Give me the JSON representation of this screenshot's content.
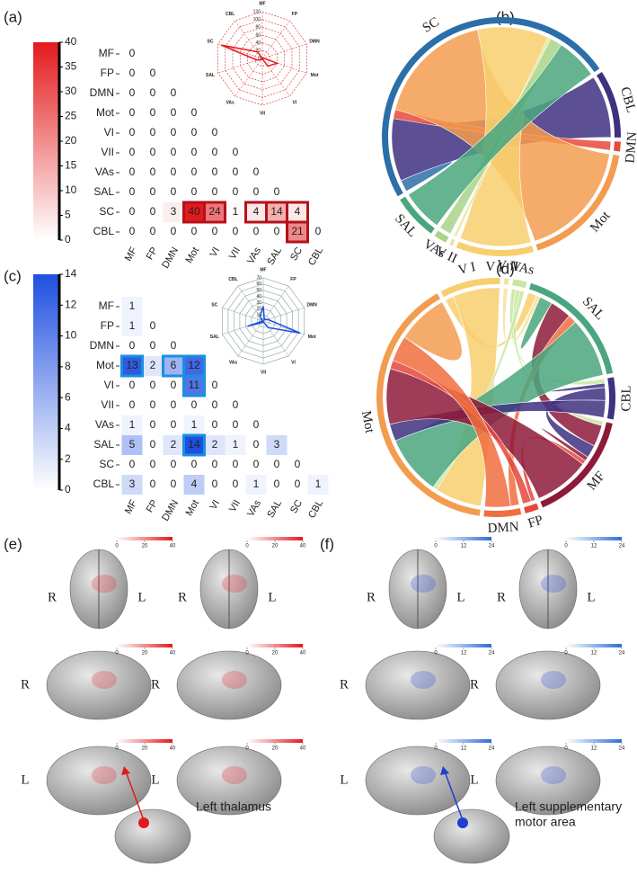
{
  "panel_a": {
    "label": "(a)",
    "networks": [
      "MF",
      "FP",
      "DMN",
      "Mot",
      "VI",
      "VII",
      "VAs",
      "SAL",
      "SC",
      "CBL"
    ],
    "matrix": [
      [
        0
      ],
      [
        0,
        0
      ],
      [
        0,
        0,
        0
      ],
      [
        0,
        0,
        0,
        0
      ],
      [
        0,
        0,
        0,
        0,
        0
      ],
      [
        0,
        0,
        0,
        0,
        0,
        0
      ],
      [
        0,
        0,
        0,
        0,
        0,
        0,
        0
      ],
      [
        0,
        0,
        0,
        0,
        0,
        0,
        0,
        0
      ],
      [
        0,
        0,
        3,
        40,
        24,
        1,
        4,
        14,
        4
      ],
      [
        0,
        0,
        0,
        0,
        0,
        0,
        0,
        0,
        21,
        0
      ]
    ],
    "highlight": [
      [
        8,
        3
      ],
      [
        8,
        4
      ],
      [
        8,
        6
      ],
      [
        8,
        7
      ],
      [
        8,
        8
      ],
      [
        9,
        8
      ]
    ],
    "color": "#e31a1c",
    "colorbar": {
      "range": [
        0,
        40
      ],
      "ticks": [
        0,
        5,
        10,
        15,
        20,
        25,
        30,
        35,
        40
      ]
    },
    "radar": {
      "range": [
        0,
        120
      ],
      "ticks": [
        0,
        20,
        40,
        60,
        80,
        100,
        120
      ],
      "values": [
        0,
        0,
        3,
        40,
        24,
        1,
        4,
        14,
        111,
        21
      ],
      "color": "#e31a1c"
    }
  },
  "panel_b": {
    "label": "(b)",
    "nodes": [
      {
        "name": "SC",
        "color": "#2b6ea8"
      },
      {
        "name": "CBL",
        "color": "#3f3080"
      },
      {
        "name": "DMN",
        "color": "#e8493a"
      },
      {
        "name": "Mot",
        "color": "#f39c4f"
      },
      {
        "name": "V I",
        "color": "#f7cf6e"
      },
      {
        "name": "V II",
        "color": "#e2e69a"
      },
      {
        "name": "VAs",
        "color": "#a8d48a"
      },
      {
        "name": "SAL",
        "color": "#4aa67e"
      }
    ]
  },
  "panel_c": {
    "label": "(c)",
    "networks": [
      "MF",
      "FP",
      "DMN",
      "Mot",
      "VI",
      "VII",
      "VAs",
      "SAL",
      "SC",
      "CBL"
    ],
    "matrix": [
      [
        1
      ],
      [
        1,
        0
      ],
      [
        0,
        0,
        0
      ],
      [
        13,
        2,
        6,
        12
      ],
      [
        0,
        0,
        0,
        11,
        0
      ],
      [
        0,
        0,
        0,
        0,
        0,
        0
      ],
      [
        1,
        0,
        0,
        1,
        0,
        0,
        0
      ],
      [
        5,
        0,
        2,
        14,
        2,
        1,
        0,
        3
      ],
      [
        0,
        0,
        0,
        0,
        0,
        0,
        0,
        0,
        0
      ],
      [
        3,
        0,
        0,
        4,
        0,
        0,
        1,
        0,
        0,
        1
      ]
    ],
    "highlight": [
      [
        3,
        0
      ],
      [
        3,
        2
      ],
      [
        3,
        3
      ],
      [
        4,
        3
      ],
      [
        7,
        3
      ]
    ],
    "color": "#1f4fe0",
    "colorbar": {
      "range": [
        0,
        14
      ],
      "ticks": [
        0,
        2,
        4,
        6,
        8,
        10,
        12,
        14
      ]
    },
    "radar": {
      "range": [
        0,
        70
      ],
      "ticks": [
        0,
        10,
        20,
        30,
        40,
        50,
        60,
        70
      ],
      "values": [
        24,
        3,
        8,
        63,
        13,
        1,
        3,
        27,
        0,
        9
      ],
      "color": "#1f4fe0"
    }
  },
  "panel_d": {
    "label": "(d)",
    "nodes": [
      {
        "name": "V I",
        "color": "#f7cf6e"
      },
      {
        "name": "V II",
        "color": "#f3e3a0"
      },
      {
        "name": "VAs",
        "color": "#c8e6a0"
      },
      {
        "name": "SAL",
        "color": "#4aa67e"
      },
      {
        "name": "CBL",
        "color": "#3f3080"
      },
      {
        "name": "MF",
        "color": "#8e1a3a"
      },
      {
        "name": "FP",
        "color": "#e5473a"
      },
      {
        "name": "DMN",
        "color": "#f06d3e"
      },
      {
        "name": "Mot",
        "color": "#f39c4f"
      }
    ]
  },
  "panel_e": {
    "label": "(e)",
    "colorbar": {
      "range": [
        0,
        40
      ],
      "ticks": [
        0,
        20,
        40
      ],
      "color": "#e31a1c"
    },
    "views": [
      [
        "R",
        "L"
      ],
      [
        "R",
        "L"
      ],
      [
        "R"
      ],
      [
        "R"
      ],
      [
        "L"
      ],
      [
        "L"
      ]
    ],
    "annotation": [
      "Left thalamus"
    ]
  },
  "panel_f": {
    "label": "(f)",
    "colorbar": {
      "range": [
        0,
        24
      ],
      "ticks": [
        0,
        12,
        24
      ],
      "color": "#2b6fd6"
    },
    "views": [
      [
        "R",
        "L"
      ],
      [
        "R",
        "L"
      ],
      [
        "R"
      ],
      [
        "R"
      ],
      [
        "L"
      ],
      [
        "L"
      ]
    ],
    "annotation": [
      "Left supplementary",
      "motor area"
    ]
  }
}
